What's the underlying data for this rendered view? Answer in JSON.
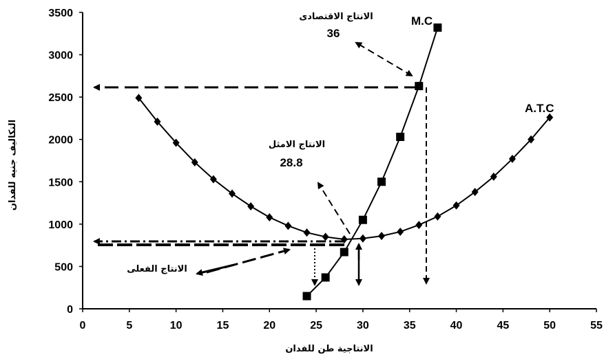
{
  "chart_data": {
    "type": "line",
    "xlabel": "الانتاجية طن للفدان",
    "ylabel": "التكاليف جنيه للفدان",
    "xlim": [
      0,
      55
    ],
    "ylim": [
      0,
      3500
    ],
    "x_ticks": [
      "0",
      "5",
      "10",
      "15",
      "20",
      "25",
      "30",
      "35",
      "40",
      "45",
      "50",
      "55"
    ],
    "y_ticks": [
      "0",
      "500",
      "1000",
      "1500",
      "2000",
      "2500",
      "3000",
      "3500"
    ],
    "grid": false,
    "series": [
      {
        "name": "M.C",
        "marker": "square",
        "x": [
          24,
          26,
          28,
          30,
          32,
          34,
          36,
          38
        ],
        "y": [
          150,
          370,
          670,
          1050,
          1500,
          2030,
          2630,
          3320
        ]
      },
      {
        "name": "A.T.C",
        "marker": "diamond",
        "x": [
          6,
          8,
          10,
          12,
          14,
          16,
          18,
          20,
          22,
          24,
          26,
          28,
          30,
          32,
          34,
          36,
          38,
          40,
          42,
          44,
          46,
          48,
          50
        ],
        "y": [
          2490,
          2210,
          1960,
          1730,
          1530,
          1360,
          1210,
          1080,
          980,
          900,
          850,
          820,
          830,
          860,
          910,
          990,
          1090,
          1220,
          1380,
          1560,
          1770,
          2000,
          2260
        ]
      }
    ],
    "annotations": {
      "economic": {
        "label": "الانتاج الاقتصادى",
        "value": "36"
      },
      "optimal": {
        "label": "الانتاج الامثل",
        "value": "28.8"
      },
      "actual": {
        "label": "الانتاج الفعلى"
      }
    }
  }
}
